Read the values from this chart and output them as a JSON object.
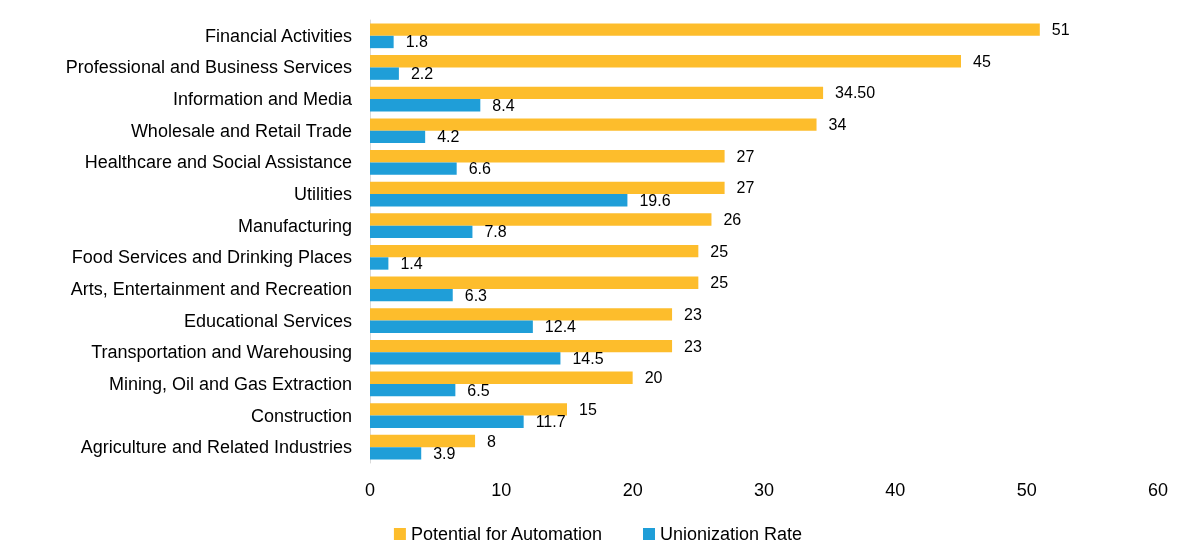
{
  "chart_data": {
    "type": "bar",
    "orientation": "horizontal",
    "categories": [
      "Financial Activities",
      "Professional and Business Services",
      "Information and Media",
      "Wholesale and Retail Trade",
      "Healthcare and Social Assistance",
      "Utilities",
      "Manufacturing",
      "Food Services and Drinking Places",
      "Arts, Entertainment and Recreation",
      "Educational Services",
      "Transportation and Warehousing",
      "Mining, Oil and Gas Extraction",
      "Construction",
      "Agriculture and Related Industries"
    ],
    "series": [
      {
        "name": "Potential for Automation",
        "color": "#fdbd2c",
        "values": [
          51,
          45,
          34.5,
          34,
          27,
          27,
          26,
          25,
          25,
          23,
          23,
          20,
          15,
          8
        ],
        "value_labels": [
          "51",
          "45",
          "34.50",
          "34",
          "27",
          "27",
          "26",
          "25",
          "25",
          "23",
          "23",
          "20",
          "15",
          "8"
        ]
      },
      {
        "name": "Unionization Rate",
        "color": "#1f9ed8",
        "values": [
          1.8,
          2.2,
          8.4,
          4.2,
          6.6,
          19.6,
          7.8,
          1.4,
          6.3,
          12.4,
          14.5,
          6.5,
          11.7,
          3.9
        ],
        "value_labels": [
          "1.8",
          "2.2",
          "8.4",
          "4.2",
          "6.6",
          "19.6",
          "7.8",
          "1.4",
          "6.3",
          "12.4",
          "14.5",
          "6.5",
          "11.7",
          "3.9"
        ]
      }
    ],
    "xlim": [
      0,
      60
    ],
    "xticks": [
      0,
      10,
      20,
      30,
      40,
      50,
      60
    ],
    "grid": false,
    "legend": "bottom"
  }
}
